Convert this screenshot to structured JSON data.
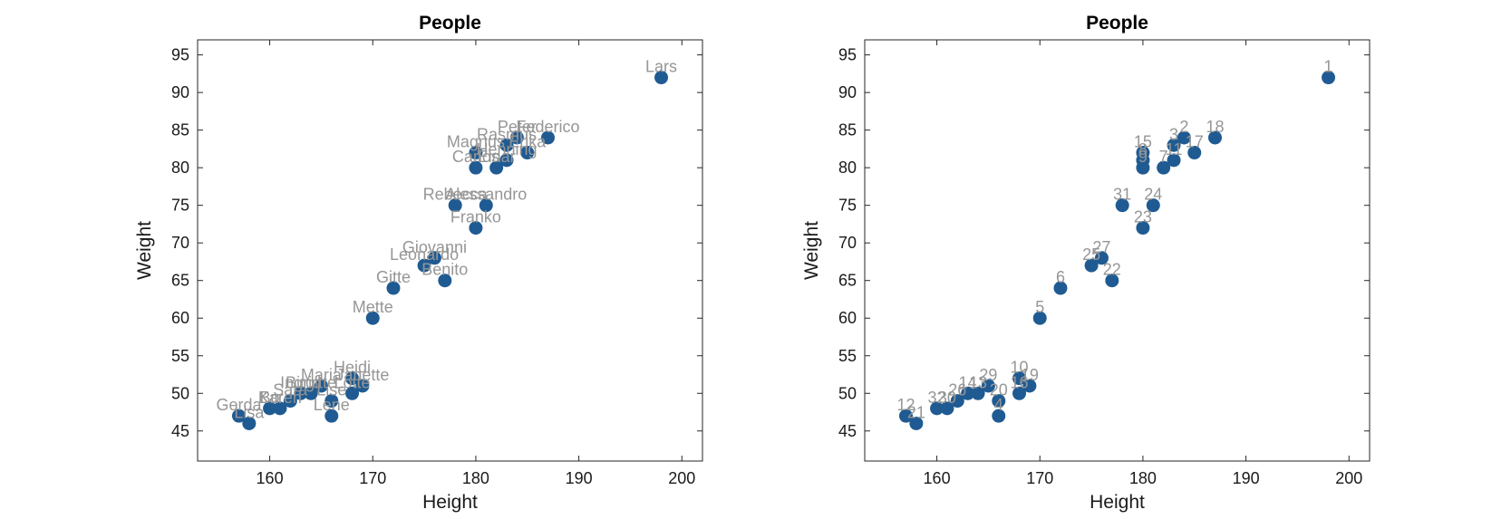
{
  "chart_data": [
    {
      "type": "scatter",
      "title": "People",
      "xlabel": "Height",
      "ylabel": "Weight",
      "xlim": [
        153,
        202
      ],
      "ylim": [
        41,
        97
      ],
      "xticks": [
        160,
        170,
        180,
        190,
        200
      ],
      "yticks": [
        45,
        50,
        55,
        60,
        65,
        70,
        75,
        80,
        85,
        90,
        95
      ],
      "marker_color": "#1f5b92",
      "label_color": "#969696",
      "points": [
        {
          "x": 198,
          "y": 92,
          "label": "Lars"
        },
        {
          "x": 184,
          "y": 84,
          "label": "Peter"
        },
        {
          "x": 183,
          "y": 83,
          "label": "Rasmus"
        },
        {
          "x": 187,
          "y": 84,
          "label": "Federico"
        },
        {
          "x": 185,
          "y": 82,
          "label": "Erika"
        },
        {
          "x": 180,
          "y": 82,
          "label": "Magnus"
        },
        {
          "x": 183,
          "y": 81,
          "label": "Henning"
        },
        {
          "x": 180,
          "y": 80,
          "label": "Carlos"
        },
        {
          "x": 182,
          "y": 80,
          "label": "Einar"
        },
        {
          "x": 178,
          "y": 75,
          "label": "Rebecca"
        },
        {
          "x": 181,
          "y": 75,
          "label": "Alessandro"
        },
        {
          "x": 180,
          "y": 72,
          "label": "Franko"
        },
        {
          "x": 176,
          "y": 68,
          "label": "Giovanni"
        },
        {
          "x": 175,
          "y": 67,
          "label": "Leonardo"
        },
        {
          "x": 177,
          "y": 65,
          "label": "Benito"
        },
        {
          "x": 172,
          "y": 64,
          "label": "Gitte"
        },
        {
          "x": 170,
          "y": 60,
          "label": "Mette"
        },
        {
          "x": 168,
          "y": 52,
          "label": "Heidi"
        },
        {
          "x": 169,
          "y": 51,
          "label": "Janette"
        },
        {
          "x": 168,
          "y": 50,
          "label": "Lotte"
        },
        {
          "x": 166,
          "y": 49,
          "label": "Lise"
        },
        {
          "x": 166,
          "y": 47,
          "label": "Lene"
        },
        {
          "x": 165,
          "y": 51,
          "label": "Maria"
        },
        {
          "x": 164,
          "y": 50,
          "label": "Birgitte"
        },
        {
          "x": 163,
          "y": 50,
          "label": "Ingrid"
        },
        {
          "x": 162,
          "y": 49,
          "label": "Sara"
        },
        {
          "x": 161,
          "y": 48,
          "label": "Karen"
        },
        {
          "x": 160,
          "y": 48,
          "label": "Bo"
        },
        {
          "x": 157,
          "y": 47,
          "label": "Gerda"
        },
        {
          "x": 158,
          "y": 46,
          "label": "Lisa"
        }
      ]
    },
    {
      "type": "scatter",
      "title": "People",
      "xlabel": "Height",
      "ylabel": "Weight",
      "xlim": [
        153,
        202
      ],
      "ylim": [
        41,
        97
      ],
      "xticks": [
        160,
        170,
        180,
        190,
        200
      ],
      "yticks": [
        45,
        50,
        55,
        60,
        65,
        70,
        75,
        80,
        85,
        90,
        95
      ],
      "marker_color": "#1f5b92",
      "label_color": "#969696",
      "points": [
        {
          "x": 198,
          "y": 92,
          "label": "1"
        },
        {
          "x": 184,
          "y": 84,
          "label": "2"
        },
        {
          "x": 183,
          "y": 83,
          "label": "3"
        },
        {
          "x": 187,
          "y": 84,
          "label": "18"
        },
        {
          "x": 185,
          "y": 82,
          "label": "17"
        },
        {
          "x": 180,
          "y": 82,
          "label": "15"
        },
        {
          "x": 180,
          "y": 81,
          "label": "8"
        },
        {
          "x": 180,
          "y": 80,
          "label": "9"
        },
        {
          "x": 182,
          "y": 80,
          "label": "7"
        },
        {
          "x": 183,
          "y": 81,
          "label": "11"
        },
        {
          "x": 178,
          "y": 75,
          "label": "31"
        },
        {
          "x": 181,
          "y": 75,
          "label": "24"
        },
        {
          "x": 180,
          "y": 72,
          "label": "23"
        },
        {
          "x": 176,
          "y": 68,
          "label": "27"
        },
        {
          "x": 175,
          "y": 67,
          "label": "25"
        },
        {
          "x": 177,
          "y": 65,
          "label": "22"
        },
        {
          "x": 172,
          "y": 64,
          "label": "6"
        },
        {
          "x": 170,
          "y": 60,
          "label": "5"
        },
        {
          "x": 168,
          "y": 52,
          "label": "10"
        },
        {
          "x": 169,
          "y": 51,
          "label": "19"
        },
        {
          "x": 168,
          "y": 50,
          "label": "16"
        },
        {
          "x": 166,
          "y": 49,
          "label": "20"
        },
        {
          "x": 166,
          "y": 47,
          "label": "4"
        },
        {
          "x": 165,
          "y": 51,
          "label": "29"
        },
        {
          "x": 164,
          "y": 50,
          "label": "13"
        },
        {
          "x": 163,
          "y": 50,
          "label": "14"
        },
        {
          "x": 162,
          "y": 49,
          "label": "26"
        },
        {
          "x": 161,
          "y": 48,
          "label": "30"
        },
        {
          "x": 160,
          "y": 48,
          "label": "32"
        },
        {
          "x": 157,
          "y": 47,
          "label": "12"
        },
        {
          "x": 158,
          "y": 46,
          "label": "21"
        }
      ]
    }
  ]
}
